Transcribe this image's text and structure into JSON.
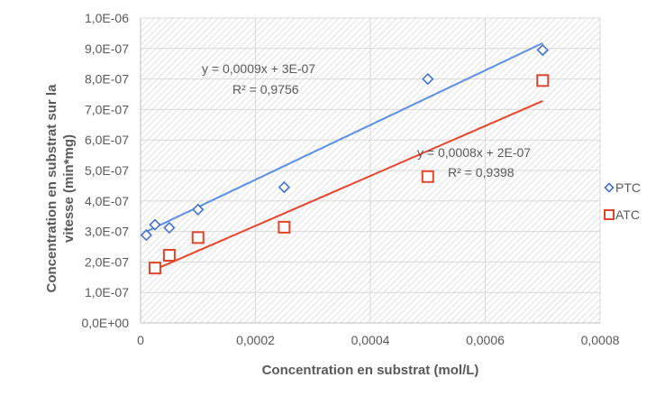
{
  "chart_data": {
    "type": "scatter",
    "xlabel": "Concentration en substrat (mol/L)",
    "ylabel_line1": "Concentration en substrat sur la",
    "ylabel_line2": "vitesse (min*mg)",
    "xlim": [
      0,
      0.0008
    ],
    "ylim": [
      0,
      1e-06
    ],
    "x_ticks": [
      0,
      0.0002,
      0.0004,
      0.0006,
      0.0008
    ],
    "x_tick_labels": [
      "0",
      "0,0002",
      "0,0004",
      "0,0006",
      "0,0008"
    ],
    "y_ticks": [
      0,
      1e-07,
      2e-07,
      3e-07,
      4e-07,
      5e-07,
      6e-07,
      7e-07,
      8e-07,
      9e-07,
      1e-06
    ],
    "y_tick_labels": [
      "0,0E+00",
      "1,0E-07",
      "2,0E-07",
      "3,0E-07",
      "4,0E-07",
      "5,0E-07",
      "6,0E-07",
      "7,0E-07",
      "8,0E-07",
      "9,0E-07",
      "1,0E-06"
    ],
    "grid": true,
    "background_pattern": "diagonal-hatch",
    "legend_position": "right",
    "series": [
      {
        "name": "PTC",
        "marker": "diamond",
        "color": "#4472C4",
        "x": [
          1e-05,
          2.5e-05,
          5e-05,
          0.0001,
          0.00025,
          0.0005,
          0.0007
        ],
        "y": [
          2.88e-07,
          3.22e-07,
          3.12e-07,
          3.72e-07,
          4.45e-07,
          8e-07,
          8.95e-07
        ],
        "trendline": {
          "color": "#5B8FE6",
          "x": [
            5e-06,
            0.0007
          ],
          "y": [
            2.95e-07,
            9.18e-07
          ],
          "equation": "y = 0,0009x + 3E-07",
          "r2": "R² = 0,9756"
        }
      },
      {
        "name": "ATC",
        "marker": "square",
        "color": "#E0442B",
        "x": [
          2.5e-05,
          5e-05,
          0.0001,
          0.00025,
          0.0005,
          0.0007
        ],
        "y": [
          1.8e-07,
          2.22e-07,
          2.8e-07,
          3.14e-07,
          4.8e-07,
          7.95e-07
        ],
        "trendline": {
          "color": "#E8432D",
          "x": [
            2.5e-05,
            0.0007
          ],
          "y": [
            1.75e-07,
            7.28e-07
          ],
          "equation": "y = 0,0008x + 2E-07",
          "r2": "R² = 0,9398"
        }
      }
    ]
  }
}
